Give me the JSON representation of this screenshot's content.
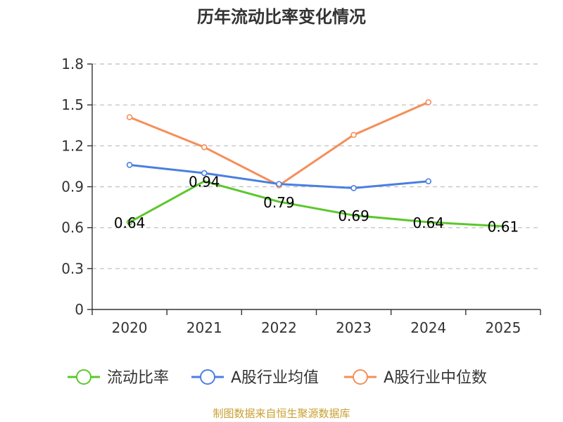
{
  "chart_data": {
    "type": "line",
    "title": "历年流动比率变化情况",
    "categories": [
      "2020",
      "2021",
      "2022",
      "2023",
      "2024",
      "2025"
    ],
    "ylim": [
      0,
      1.8
    ],
    "yticks": [
      "0",
      "0.3",
      "0.6",
      "0.9",
      "1.2",
      "1.5",
      "1.8"
    ],
    "grid": true,
    "legend_position": "bottom",
    "series": [
      {
        "name": "流动比率",
        "color": "#5cc72b",
        "values": [
          0.64,
          0.94,
          0.79,
          0.69,
          0.64,
          0.61
        ],
        "labels": [
          "0.64",
          "0.94",
          "0.79",
          "0.69",
          "0.64",
          "0.61"
        ],
        "show_markers": "first-only"
      },
      {
        "name": "A股行业均值",
        "color": "#4a7fe0",
        "values": [
          1.06,
          1.0,
          0.92,
          0.89,
          0.94,
          null
        ]
      },
      {
        "name": "A股行业中位数",
        "color": "#f58f5a",
        "values": [
          1.41,
          1.19,
          0.91,
          1.28,
          1.52,
          null
        ]
      }
    ]
  },
  "source": {
    "text": "制图数据来自恒生聚源数据库",
    "color": "#c8a032"
  },
  "axis_color": "#333333",
  "grid_color": "#c8c8c8"
}
